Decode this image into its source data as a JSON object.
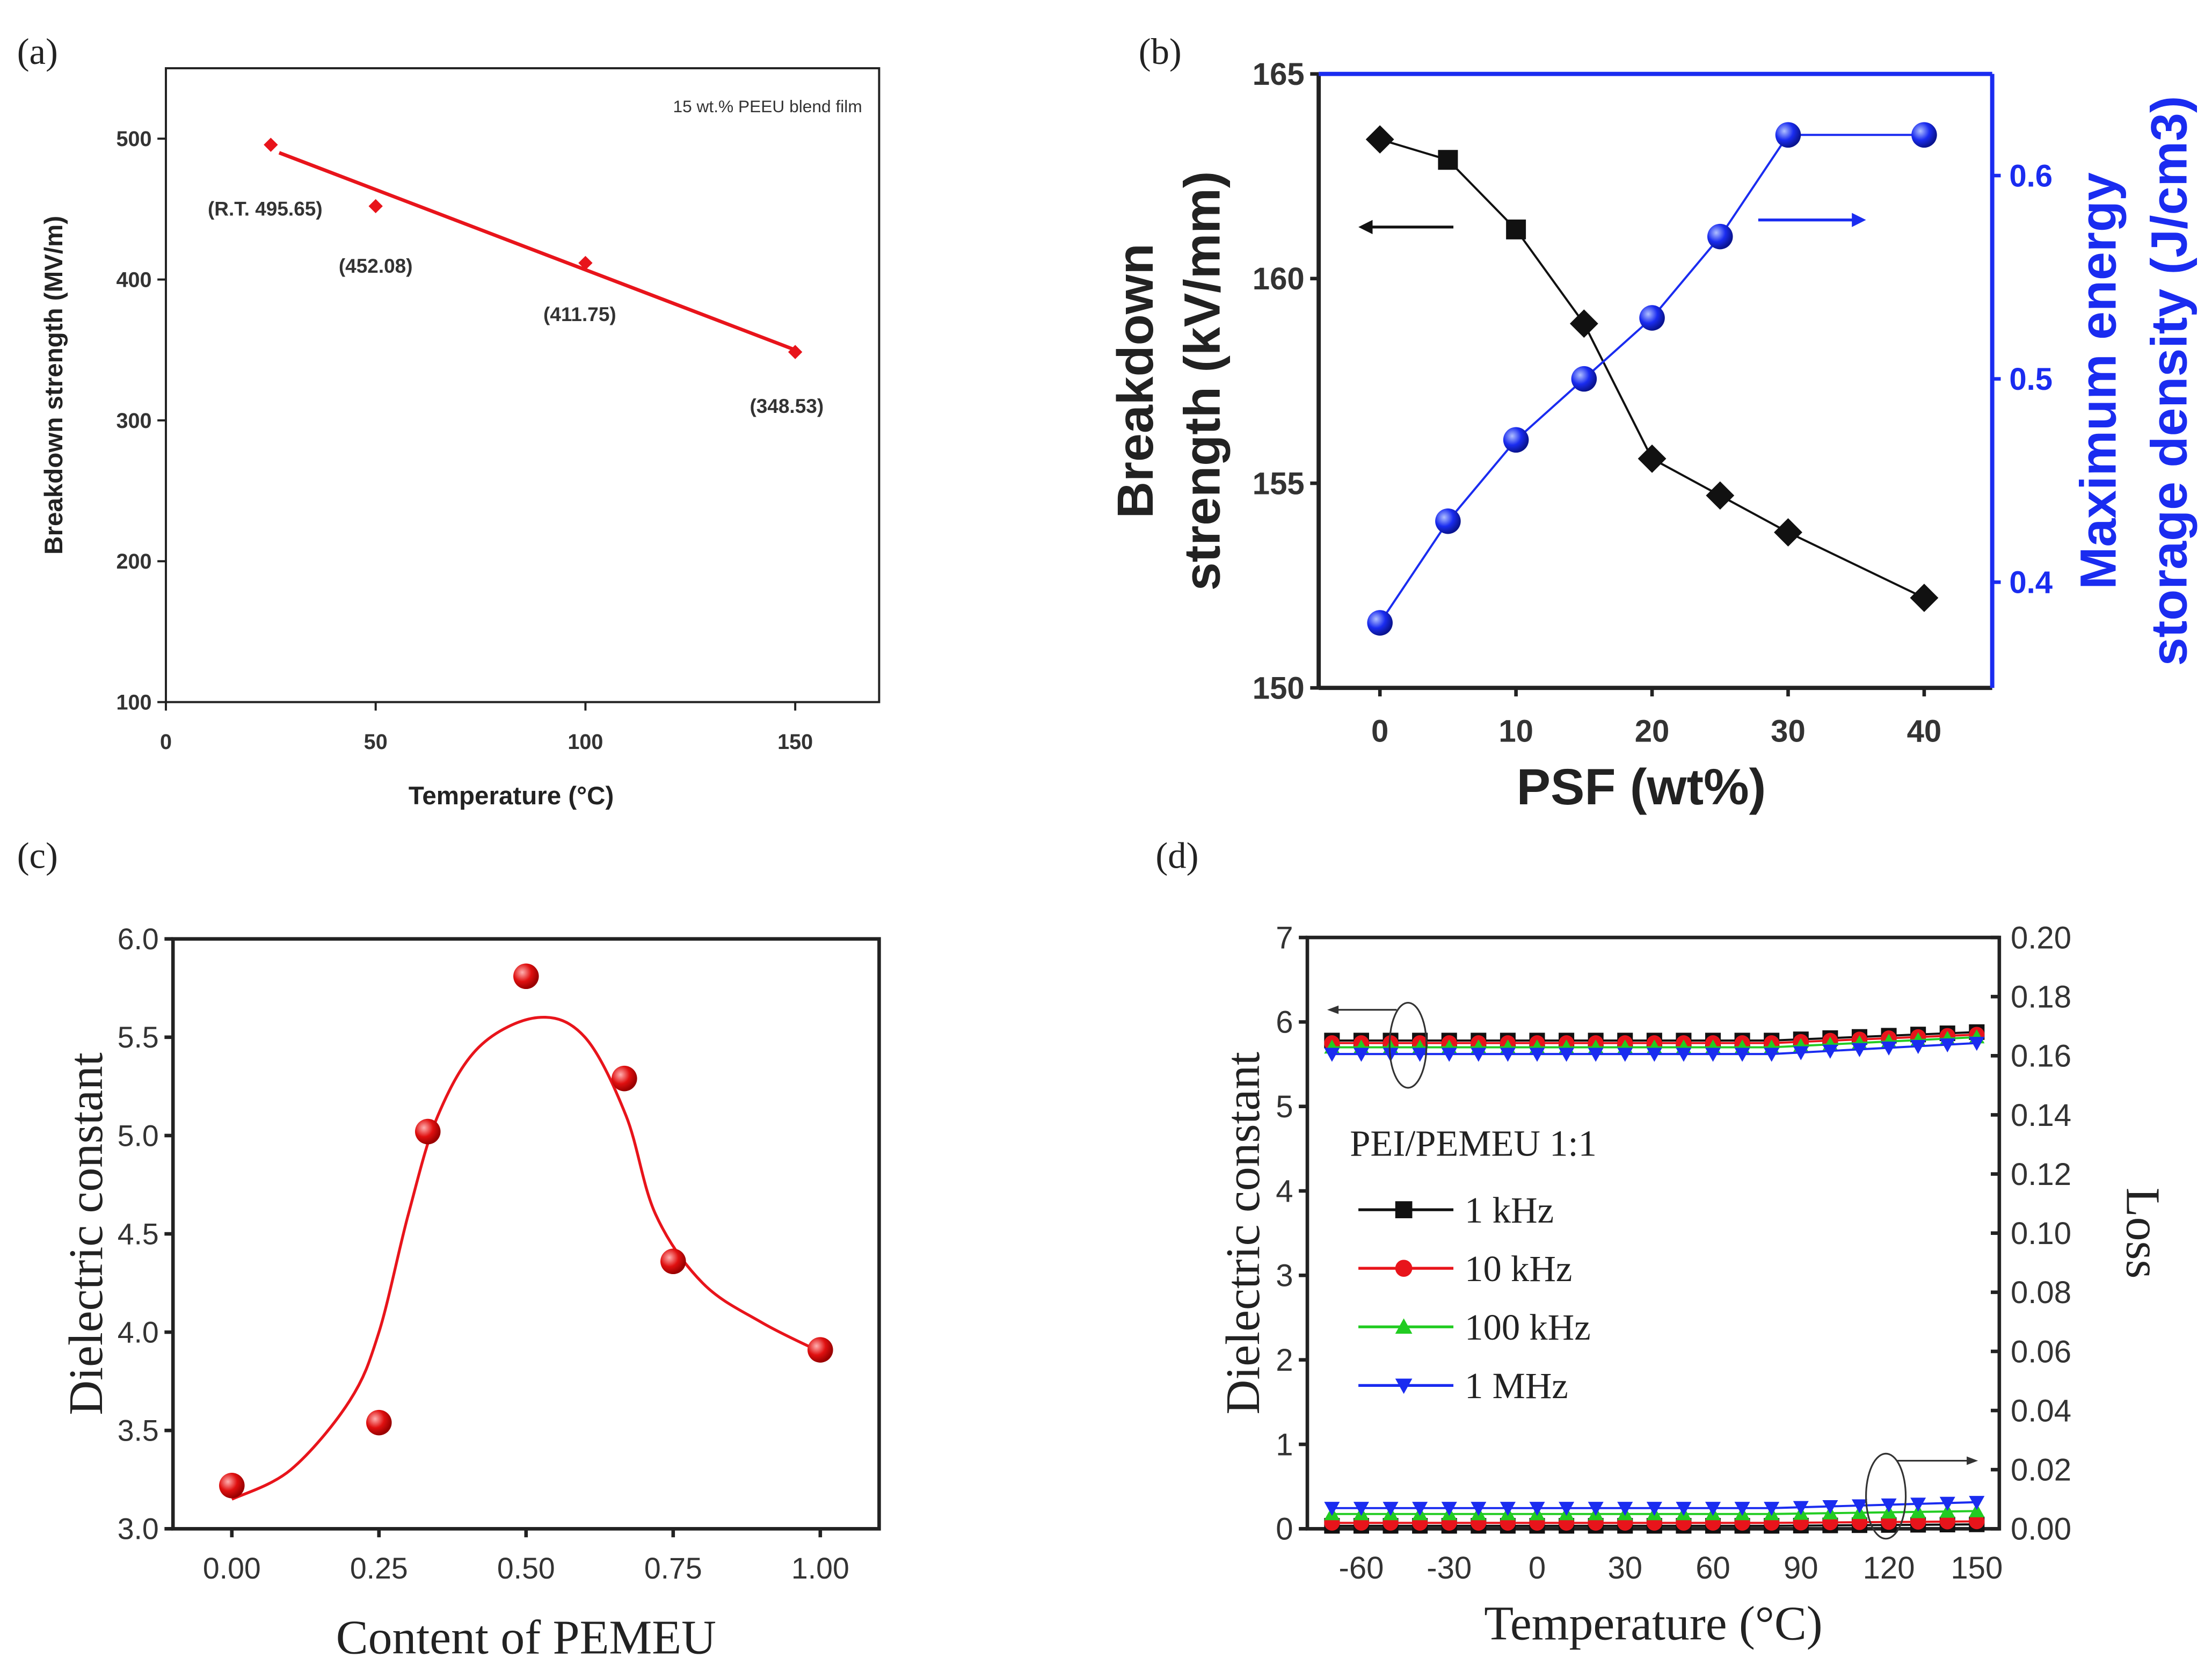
{
  "chart_data": [
    {
      "panel_label": "(a)",
      "type": "scatter",
      "xlabel": "Temperature (°C)",
      "ylabel": "Breakdown strength (MV/m)",
      "xlim": [
        0,
        170
      ],
      "ylim": [
        100,
        550
      ],
      "xticks": [
        0,
        50,
        100,
        150
      ],
      "yticks": [
        100,
        200,
        300,
        400,
        500
      ],
      "annotation": "15 wt.% PEEU blend film",
      "series": [
        {
          "name": "data",
          "color": "#e8141b",
          "marker": "diamond",
          "x": [
            25,
            50,
            100,
            150
          ],
          "y": [
            495.65,
            452.08,
            411.75,
            348.53
          ],
          "labels": [
            "(R.T. 495.65)",
            "(452.08)",
            "(411.75)",
            "(348.53)"
          ]
        },
        {
          "name": "linear fit",
          "color": "#e8141b",
          "marker": "none",
          "x": [
            27,
            150
          ],
          "y": [
            490,
            350
          ]
        }
      ]
    },
    {
      "panel_label": "(b)",
      "type": "line",
      "xlabel": "PSF (wt%)",
      "ylabel": [
        "Breakdown",
        "strength (kV/mm)"
      ],
      "y2label": [
        "Maximum energy",
        "storage density (J/cm3)"
      ],
      "xlim": [
        -4.5,
        45
      ],
      "ylim": [
        150,
        165
      ],
      "y2lim": [
        0.348,
        0.65
      ],
      "xticks": [
        0,
        10,
        20,
        30,
        40
      ],
      "yticks": [
        150,
        155,
        160,
        165
      ],
      "y2ticks": [
        "0.4",
        "0.5",
        "0.6"
      ],
      "series": [
        {
          "name": "Breakdown strength",
          "axis": "left",
          "color": "#111111",
          "marker": "square-diamond",
          "x": [
            0,
            5,
            10,
            15,
            20,
            25,
            30,
            40
          ],
          "y": [
            163.4,
            162.9,
            161.2,
            158.9,
            155.6,
            154.7,
            153.8,
            152.2
          ]
        },
        {
          "name": "Maximum energy storage density",
          "axis": "right",
          "color": "#1a2cf0",
          "marker": "circle",
          "x": [
            0,
            5,
            10,
            15,
            20,
            25,
            30,
            40
          ],
          "y": [
            0.38,
            0.43,
            0.47,
            0.5,
            0.53,
            0.57,
            0.62,
            0.62
          ]
        }
      ]
    },
    {
      "panel_label": "(c)",
      "type": "scatter",
      "xlabel": "Content of PEMEU",
      "ylabel": "Dielectric constant",
      "xlim": [
        -0.1,
        1.1
      ],
      "ylim": [
        3.0,
        6.0
      ],
      "xticks": [
        "0.00",
        "0.25",
        "0.50",
        "0.75",
        "1.00"
      ],
      "yticks": [
        "3.0",
        "3.5",
        "4.0",
        "4.5",
        "5.0",
        "5.5",
        "6.0"
      ],
      "series": [
        {
          "name": "data",
          "color": "#e8141b",
          "marker": "sphere",
          "x": [
            0,
            0.25,
            0.333,
            0.5,
            0.667,
            0.75,
            1.0
          ],
          "y": [
            3.22,
            3.54,
            5.02,
            5.81,
            5.29,
            4.36,
            3.91
          ]
        },
        {
          "name": "fit",
          "color": "#e8141b",
          "marker": "none",
          "x": [
            0,
            0.1,
            0.2,
            0.25,
            0.3,
            0.35,
            0.42,
            0.52,
            0.6,
            0.67,
            0.72,
            0.8,
            0.9,
            1.0
          ],
          "y": [
            3.15,
            3.3,
            3.65,
            4.0,
            4.6,
            5.1,
            5.45,
            5.6,
            5.5,
            5.1,
            4.6,
            4.25,
            4.05,
            3.9
          ]
        }
      ]
    },
    {
      "panel_label": "(d)",
      "type": "line",
      "xlabel": "Temperature (°C)",
      "ylabel": "Dielectric constant",
      "y2label": "Loss",
      "xlim": [
        -78.4,
        157.7
      ],
      "ylim": [
        0,
        7
      ],
      "y2lim": [
        0,
        0.2
      ],
      "xticks": [
        -60,
        -30,
        0,
        30,
        60,
        90,
        120,
        150
      ],
      "yticks": [
        0,
        1,
        2,
        3,
        4,
        5,
        6,
        7
      ],
      "y2ticks": [
        "0.00",
        "0.02",
        "0.04",
        "0.06",
        "0.08",
        "0.10",
        "0.12",
        "0.14",
        "0.16",
        "0.18",
        "0.20"
      ],
      "legend_title": "PEI/PEMEU 1:1",
      "legend_placement": "center-left",
      "series": [
        {
          "name": "1 kHz",
          "color": "#111111",
          "marker": "square",
          "eps": [
            5.78,
            5.88
          ],
          "loss": [
            0.001,
            0.0015
          ]
        },
        {
          "name": "10 kHz",
          "color": "#e8141b",
          "marker": "circle",
          "eps": [
            5.75,
            5.85
          ],
          "loss": [
            0.002,
            0.0025
          ]
        },
        {
          "name": "100 kHz",
          "color": "#22cc22",
          "marker": "triangle-up",
          "eps": [
            5.7,
            5.82
          ],
          "loss": [
            0.005,
            0.006
          ]
        },
        {
          "name": "1 MHz",
          "color": "#1a2cf0",
          "marker": "triangle-down",
          "eps": [
            5.62,
            5.75
          ],
          "loss": [
            0.007,
            0.009
          ]
        }
      ],
      "x_start": -70,
      "x_end": 150,
      "x_step": 10
    }
  ]
}
